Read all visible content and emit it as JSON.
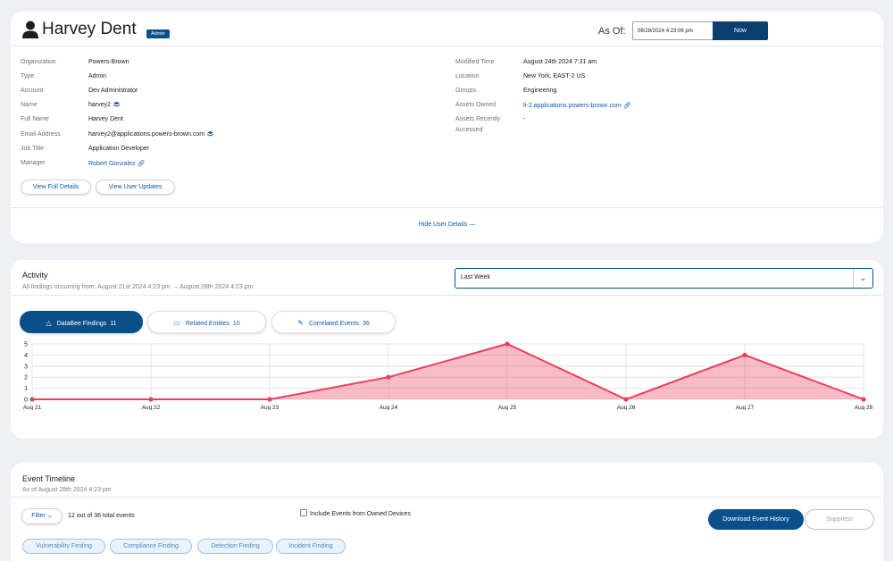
{
  "user": {
    "name": "Harvey Dent",
    "badge": "Admin",
    "as_of_label": "As Of:",
    "as_of_value": "08/28/2024 4:23:06 pm",
    "now_button": "Now"
  },
  "details_left": [
    {
      "label": "Organization",
      "value": "Powers-Brown"
    },
    {
      "label": "Type",
      "value": "Admin"
    },
    {
      "label": "Account",
      "value": "Dev Administrator"
    },
    {
      "label": "Name",
      "value": "harvey2",
      "icon": "stack-icon"
    },
    {
      "label": "Full Name",
      "value": "Harvey Dent"
    },
    {
      "label": "Email Address",
      "value": "harvey2@applications.powers-brown.com",
      "icon": "stack-icon"
    },
    {
      "label": "Job Title",
      "value": "Application Developer"
    },
    {
      "label": "Manager",
      "value": "Robert Gonzalez",
      "icon": "link-icon"
    }
  ],
  "details_right": [
    {
      "label": "Modified Time",
      "value": "August 24th 2024 7:31 am"
    },
    {
      "label": "Location",
      "value": "New York, EAST-2 US"
    },
    {
      "label": "Groups",
      "value": "Engineering"
    },
    {
      "label": "Assets Owned",
      "value": "lt-2.applications.powers-brown.com",
      "icon": "link-icon"
    },
    {
      "label": "Assets Recently",
      "label2": "Accessed",
      "value": "-"
    }
  ],
  "buttons": {
    "view_full": "View Full Details",
    "view_updates": "View User Updates",
    "hide_details": "Hide User Details —"
  },
  "activity": {
    "title": "Activity",
    "subtitle": "All findings occurring from: August 21st 2024 4:23 pm → August 28th 2024 4:23 pm",
    "range": "Last Week",
    "tabs": [
      {
        "label": "DataBee Findings",
        "count": "11",
        "icon": "warning-icon"
      },
      {
        "label": "Related Entities",
        "count": "10",
        "icon": "monitor-icon"
      },
      {
        "label": "Correlated Events",
        "count": "36",
        "icon": "pencil-icon"
      }
    ]
  },
  "chart_data": {
    "type": "area",
    "categories": [
      "Aug 21",
      "Aug 22",
      "Aug 23",
      "Aug 24",
      "Aug 25",
      "Aug 26",
      "Aug 27",
      "Aug 28"
    ],
    "values": [
      0,
      0,
      0,
      2,
      5,
      0,
      4,
      0
    ],
    "yticks": [
      0,
      1,
      2,
      3,
      4,
      5
    ],
    "ylim": [
      0,
      5
    ],
    "grid": true,
    "color": "#ef3e5c"
  },
  "timeline": {
    "title": "Event Timeline",
    "subtitle": "As of August 28th 2024 4:23 pm",
    "filter": "Filter",
    "total": "12 out of 36 total events",
    "include": "Include Events from Owned Devices",
    "download": "Download Event History",
    "suppress": "Suppress",
    "chips": [
      "Vulnerability Finding",
      "Compliance Finding",
      "Detection Finding",
      "Incident Finding"
    ]
  }
}
